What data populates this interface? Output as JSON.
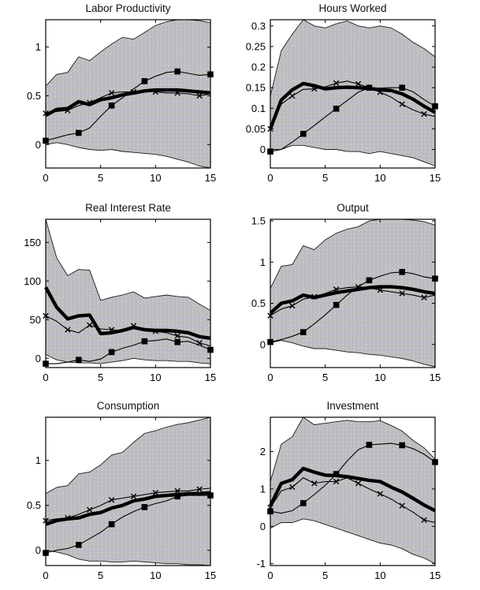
{
  "figure_type": "matlab-style impulse response figure, 2 columns x 3 rows, no legend",
  "style": {
    "band_base_color": "#bcbcc6",
    "band_speckle1": "#d9d991",
    "band_speckle2": "#c9c9cf",
    "band_speckle3": "#adadc0",
    "band_edge_color": "#1a1a1a",
    "line_color": "#000000",
    "axis_color": "#000000"
  },
  "chart_data": [
    {
      "type": "line",
      "title": "Labor Productivity",
      "x": [
        0,
        1,
        2,
        3,
        4,
        5,
        6,
        7,
        8,
        9,
        10,
        11,
        12,
        13,
        14,
        15
      ],
      "xlim": [
        0,
        15
      ],
      "ylim": [
        -0.24,
        1.28
      ],
      "xticks": [
        "0",
        "5",
        "10",
        "15"
      ],
      "yticks": [
        "0",
        "0.5",
        "1"
      ],
      "series": {
        "band_upper": [
          0.6,
          0.72,
          0.74,
          0.9,
          0.86,
          0.95,
          1.03,
          1.1,
          1.08,
          1.15,
          1.22,
          1.26,
          1.28,
          1.28,
          1.27,
          1.25
        ],
        "band_lower": [
          0.0,
          0.02,
          0.0,
          -0.03,
          -0.05,
          -0.06,
          -0.05,
          -0.07,
          -0.08,
          -0.09,
          -0.1,
          -0.12,
          -0.15,
          -0.18,
          -0.22,
          -0.25
        ],
        "thick": [
          0.3,
          0.36,
          0.37,
          0.44,
          0.41,
          0.46,
          0.48,
          0.51,
          0.53,
          0.55,
          0.56,
          0.56,
          0.56,
          0.55,
          0.54,
          0.53
        ],
        "xline": [
          0.32,
          0.34,
          0.35,
          0.4,
          0.43,
          0.48,
          0.53,
          0.54,
          0.54,
          0.55,
          0.54,
          0.53,
          0.53,
          0.52,
          0.5,
          0.52
        ],
        "sqline": [
          0.04,
          0.07,
          0.1,
          0.12,
          0.17,
          0.29,
          0.4,
          0.48,
          0.57,
          0.65,
          0.7,
          0.74,
          0.75,
          0.73,
          0.71,
          0.72
        ]
      }
    },
    {
      "type": "line",
      "title": "Hours Worked",
      "x": [
        0,
        1,
        2,
        3,
        4,
        5,
        6,
        7,
        8,
        9,
        10,
        11,
        12,
        13,
        14,
        15
      ],
      "xlim": [
        0,
        15
      ],
      "ylim": [
        -0.045,
        0.315
      ],
      "xticks": [
        "0",
        "5",
        "10",
        "15"
      ],
      "yticks": [
        "0",
        "0.05",
        "0.1",
        "0.15",
        "0.2",
        "0.25",
        "0.3"
      ],
      "series": {
        "band_upper": [
          0.13,
          0.24,
          0.28,
          0.315,
          0.3,
          0.295,
          0.305,
          0.312,
          0.3,
          0.295,
          0.3,
          0.295,
          0.28,
          0.26,
          0.245,
          0.225
        ],
        "band_lower": [
          0.0,
          0.0,
          0.01,
          0.01,
          0.005,
          0.0,
          0.0,
          -0.005,
          -0.005,
          -0.01,
          -0.005,
          -0.01,
          -0.015,
          -0.02,
          -0.03,
          -0.04
        ],
        "thick": [
          0.05,
          0.12,
          0.145,
          0.16,
          0.155,
          0.147,
          0.15,
          0.151,
          0.15,
          0.148,
          0.145,
          0.143,
          0.135,
          0.122,
          0.105,
          0.09
        ],
        "xline": [
          0.05,
          0.11,
          0.13,
          0.146,
          0.147,
          0.152,
          0.161,
          0.166,
          0.159,
          0.15,
          0.139,
          0.127,
          0.11,
          0.096,
          0.086,
          0.08
        ],
        "sqline": [
          -0.005,
          0.0,
          0.018,
          0.038,
          0.058,
          0.079,
          0.099,
          0.119,
          0.139,
          0.15,
          0.149,
          0.15,
          0.15,
          0.14,
          0.121,
          0.105
        ]
      }
    },
    {
      "type": "line",
      "title": "Real Interest Rate",
      "x": [
        0,
        1,
        2,
        3,
        4,
        5,
        6,
        7,
        8,
        9,
        10,
        11,
        12,
        13,
        14,
        15
      ],
      "xlim": [
        0,
        15
      ],
      "ylim": [
        -12,
        180
      ],
      "xticks": [
        "0",
        "5",
        "10",
        "15"
      ],
      "yticks": [
        "0",
        "50",
        "100",
        "150"
      ],
      "series": {
        "band_upper": [
          180,
          130,
          107,
          115,
          114,
          75,
          79,
          82,
          86,
          78,
          80,
          82,
          80,
          79,
          70,
          62
        ],
        "band_lower": [
          5,
          -2,
          -5,
          -6,
          -6,
          -7,
          -5,
          -3,
          0,
          -2,
          -3,
          -3,
          -4,
          -4,
          -6,
          -7
        ],
        "thick": [
          92,
          66,
          51,
          55,
          56,
          32,
          33,
          36,
          40,
          37,
          36,
          36,
          35,
          33,
          28,
          26
        ],
        "xline": [
          55,
          48,
          37,
          33,
          43,
          38,
          37,
          36,
          42,
          37,
          35,
          33,
          29,
          27,
          20,
          16
        ],
        "sqline": [
          -7,
          -7,
          -5,
          -2,
          -4,
          -1,
          8,
          13,
          17,
          22,
          23,
          25,
          21,
          22,
          17,
          11
        ]
      }
    },
    {
      "type": "line",
      "title": "Output",
      "x": [
        0,
        1,
        2,
        3,
        4,
        5,
        6,
        7,
        8,
        9,
        10,
        11,
        12,
        13,
        14,
        15
      ],
      "xlim": [
        0,
        15
      ],
      "ylim": [
        -0.28,
        1.52
      ],
      "xticks": [
        "0",
        "5",
        "10",
        "15"
      ],
      "yticks": [
        "0",
        "0.5",
        "1",
        "1.5"
      ],
      "series": {
        "band_upper": [
          0.68,
          0.95,
          0.97,
          1.2,
          1.15,
          1.27,
          1.35,
          1.4,
          1.43,
          1.5,
          1.52,
          1.52,
          1.52,
          1.51,
          1.49,
          1.45
        ],
        "band_lower": [
          0.02,
          0.05,
          0.02,
          -0.02,
          -0.05,
          -0.05,
          -0.07,
          -0.09,
          -0.1,
          -0.12,
          -0.13,
          -0.15,
          -0.17,
          -0.2,
          -0.24,
          -0.27
        ],
        "thick": [
          0.38,
          0.5,
          0.53,
          0.6,
          0.57,
          0.6,
          0.63,
          0.65,
          0.67,
          0.69,
          0.7,
          0.7,
          0.69,
          0.67,
          0.64,
          0.62
        ],
        "xline": [
          0.35,
          0.43,
          0.47,
          0.55,
          0.58,
          0.62,
          0.67,
          0.69,
          0.7,
          0.69,
          0.66,
          0.64,
          0.62,
          0.6,
          0.57,
          0.6
        ],
        "sqline": [
          0.03,
          0.06,
          0.1,
          0.15,
          0.25,
          0.36,
          0.48,
          0.6,
          0.7,
          0.78,
          0.83,
          0.87,
          0.88,
          0.86,
          0.82,
          0.8
        ]
      }
    },
    {
      "type": "line",
      "title": "Consumption",
      "x": [
        0,
        1,
        2,
        3,
        4,
        5,
        6,
        7,
        8,
        9,
        10,
        11,
        12,
        13,
        14,
        15
      ],
      "xlim": [
        0,
        15
      ],
      "ylim": [
        -0.17,
        1.48
      ],
      "xticks": [
        "0",
        "5",
        "10",
        "15"
      ],
      "yticks": [
        "0",
        "0.5",
        "1"
      ],
      "series": {
        "band_upper": [
          0.63,
          0.7,
          0.72,
          0.85,
          0.87,
          0.95,
          1.06,
          1.09,
          1.2,
          1.3,
          1.33,
          1.37,
          1.4,
          1.42,
          1.45,
          1.48
        ],
        "band_lower": [
          0.0,
          -0.02,
          -0.05,
          -0.1,
          -0.12,
          -0.12,
          -0.13,
          -0.13,
          -0.12,
          -0.13,
          -0.14,
          -0.15,
          -0.15,
          -0.16,
          -0.16,
          -0.17
        ],
        "thick": [
          0.29,
          0.33,
          0.35,
          0.36,
          0.4,
          0.42,
          0.47,
          0.5,
          0.55,
          0.57,
          0.6,
          0.61,
          0.62,
          0.63,
          0.63,
          0.64
        ],
        "xline": [
          0.33,
          0.35,
          0.36,
          0.4,
          0.45,
          0.5,
          0.56,
          0.58,
          0.6,
          0.62,
          0.64,
          0.65,
          0.66,
          0.66,
          0.68,
          0.69
        ],
        "sqline": [
          -0.03,
          0.0,
          0.02,
          0.06,
          0.13,
          0.2,
          0.29,
          0.37,
          0.43,
          0.48,
          0.52,
          0.55,
          0.6,
          0.61,
          0.61,
          0.61
        ]
      }
    },
    {
      "type": "line",
      "title": "Investment",
      "x": [
        0,
        1,
        2,
        3,
        4,
        5,
        6,
        7,
        8,
        9,
        10,
        11,
        12,
        13,
        14,
        15
      ],
      "xlim": [
        0,
        15
      ],
      "ylim": [
        -1.05,
        2.92
      ],
      "xticks": [
        "0",
        "5",
        "10",
        "15"
      ],
      "yticks": [
        "-1",
        "0",
        "1",
        "2"
      ],
      "series": {
        "band_upper": [
          1.2,
          2.2,
          2.4,
          2.95,
          2.72,
          2.76,
          2.8,
          2.84,
          2.8,
          2.8,
          2.83,
          2.7,
          2.55,
          2.3,
          2.1,
          1.8
        ],
        "band_lower": [
          -0.05,
          0.1,
          0.1,
          0.2,
          0.15,
          0.05,
          -0.05,
          -0.15,
          -0.25,
          -0.35,
          -0.45,
          -0.5,
          -0.6,
          -0.75,
          -0.85,
          -1.0
        ],
        "thick": [
          0.55,
          1.15,
          1.25,
          1.55,
          1.45,
          1.37,
          1.36,
          1.33,
          1.28,
          1.23,
          1.2,
          1.05,
          0.92,
          0.75,
          0.57,
          0.42
        ],
        "xline": [
          0.5,
          0.95,
          1.05,
          1.3,
          1.15,
          1.2,
          1.2,
          1.3,
          1.15,
          1.0,
          0.87,
          0.73,
          0.55,
          0.38,
          0.17,
          0.1
        ],
        "sqline": [
          0.4,
          0.35,
          0.42,
          0.62,
          0.85,
          1.1,
          1.4,
          1.75,
          2.05,
          2.18,
          2.2,
          2.22,
          2.17,
          2.08,
          1.93,
          1.72
        ]
      }
    }
  ]
}
